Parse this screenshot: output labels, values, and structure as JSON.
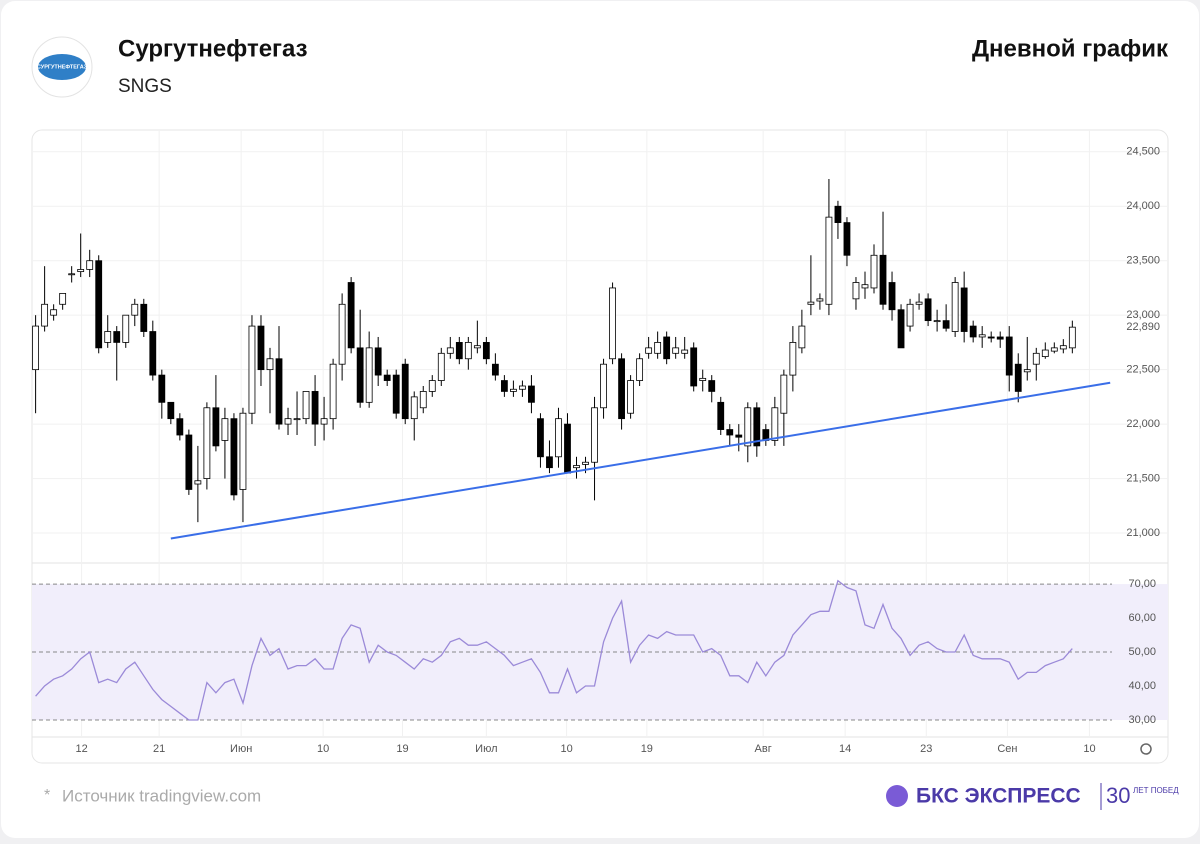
{
  "header": {
    "title": "Сургутнефтегаз",
    "ticker": "SNGS",
    "chart_kind": "Дневной график",
    "logo_text": "СУРГУТНЕФТЕГАЗ"
  },
  "footer": {
    "asterisk": "*",
    "source": "Источник tradingview.com",
    "brand": "БКС ЭКСПРЕСС",
    "years": "30",
    "years_text": "ЛЕТ ПОБЕД"
  },
  "chart_data": {
    "type": "candlestick",
    "ylim": [
      20725,
      24700
    ],
    "yticks": [
      {
        "value": 21000,
        "label": "21,000"
      },
      {
        "value": 21500,
        "label": "21,500"
      },
      {
        "value": 22000,
        "label": "22,000"
      },
      {
        "value": 22500,
        "label": "22,500"
      },
      {
        "value": 23000,
        "label": "23,000"
      },
      {
        "value": 23500,
        "label": "23,500"
      },
      {
        "value": 24000,
        "label": "24,000"
      },
      {
        "value": 24500,
        "label": "24,500"
      }
    ],
    "last_price": {
      "value": 22890,
      "label": "22,890"
    },
    "xlim": [
      -0.4,
      119.4
    ],
    "xticks": [
      {
        "value": 5.1,
        "label": "12"
      },
      {
        "value": 13.7,
        "label": "21"
      },
      {
        "value": 22.8,
        "label": "Июн"
      },
      {
        "value": 31.9,
        "label": "10"
      },
      {
        "value": 40.7,
        "label": "19"
      },
      {
        "value": 50,
        "label": "Июл"
      },
      {
        "value": 58.9,
        "label": "10"
      },
      {
        "value": 67.8,
        "label": "19"
      },
      {
        "value": 80.7,
        "label": "Авг"
      },
      {
        "value": 89.8,
        "label": "14"
      },
      {
        "value": 98.8,
        "label": "23"
      },
      {
        "value": 107.8,
        "label": "Сен"
      },
      {
        "value": 116.9,
        "label": "10"
      }
    ],
    "up_color": "#ffffff",
    "down_color": "#000000",
    "grid": true,
    "trendline": {
      "x": [
        15,
        119.2
      ],
      "y": [
        20950,
        22380
      ],
      "color": "#3a6ee8"
    },
    "candles": [
      {
        "open": 22500,
        "high": 23000,
        "low": 22100,
        "close": 22900
      },
      {
        "open": 22900,
        "high": 23450,
        "low": 22850,
        "close": 23100
      },
      {
        "open": 23000,
        "high": 23100,
        "low": 22950,
        "close": 23050
      },
      {
        "open": 23100,
        "high": 23200,
        "low": 23050,
        "close": 23200
      },
      {
        "open": 23380,
        "high": 23450,
        "low": 23300,
        "close": 23380
      },
      {
        "open": 23400,
        "high": 23750,
        "low": 23350,
        "close": 23420
      },
      {
        "open": 23420,
        "high": 23600,
        "low": 23350,
        "close": 23500
      },
      {
        "open": 23500,
        "high": 23550,
        "low": 22650,
        "close": 22700
      },
      {
        "open": 22750,
        "high": 23000,
        "low": 22700,
        "close": 22850
      },
      {
        "open": 22850,
        "high": 22900,
        "low": 22400,
        "close": 22750
      },
      {
        "open": 22750,
        "high": 23000,
        "low": 22700,
        "close": 23000
      },
      {
        "open": 23000,
        "high": 23150,
        "low": 22900,
        "close": 23100
      },
      {
        "open": 23100,
        "high": 23150,
        "low": 22800,
        "close": 22850
      },
      {
        "open": 22850,
        "high": 22950,
        "low": 22400,
        "close": 22450
      },
      {
        "open": 22450,
        "high": 22500,
        "low": 22050,
        "close": 22200
      },
      {
        "open": 22200,
        "high": 22200,
        "low": 22000,
        "close": 22050
      },
      {
        "open": 22050,
        "high": 22100,
        "low": 21850,
        "close": 21900
      },
      {
        "open": 21900,
        "high": 21950,
        "low": 21350,
        "close": 21400
      },
      {
        "open": 21450,
        "high": 21800,
        "low": 21100,
        "close": 21480
      },
      {
        "open": 21500,
        "high": 22200,
        "low": 21400,
        "close": 22150
      },
      {
        "open": 22150,
        "high": 22450,
        "low": 21750,
        "close": 21800
      },
      {
        "open": 21850,
        "high": 22150,
        "low": 21500,
        "close": 22050
      },
      {
        "open": 22050,
        "high": 22100,
        "low": 21300,
        "close": 21350
      },
      {
        "open": 21400,
        "high": 22150,
        "low": 21100,
        "close": 22100
      },
      {
        "open": 22100,
        "high": 23000,
        "low": 22000,
        "close": 22900
      },
      {
        "open": 22900,
        "high": 23000,
        "low": 22350,
        "close": 22500
      },
      {
        "open": 22500,
        "high": 22700,
        "low": 22100,
        "close": 22600
      },
      {
        "open": 22600,
        "high": 22900,
        "low": 21950,
        "close": 22000
      },
      {
        "open": 22000,
        "high": 22150,
        "low": 21900,
        "close": 22050
      },
      {
        "open": 22050,
        "high": 22300,
        "low": 21900,
        "close": 22050
      },
      {
        "open": 22050,
        "high": 22300,
        "low": 22000,
        "close": 22300
      },
      {
        "open": 22300,
        "high": 22450,
        "low": 21800,
        "close": 22000
      },
      {
        "open": 22000,
        "high": 22250,
        "low": 21850,
        "close": 22050
      },
      {
        "open": 22050,
        "high": 22600,
        "low": 21950,
        "close": 22550
      },
      {
        "open": 22550,
        "high": 23200,
        "low": 22400,
        "close": 23100
      },
      {
        "open": 23300,
        "high": 23350,
        "low": 22650,
        "close": 22700
      },
      {
        "open": 22700,
        "high": 23050,
        "low": 22150,
        "close": 22200
      },
      {
        "open": 22200,
        "high": 22850,
        "low": 22150,
        "close": 22700
      },
      {
        "open": 22700,
        "high": 22800,
        "low": 22350,
        "close": 22450
      },
      {
        "open": 22450,
        "high": 22500,
        "low": 22350,
        "close": 22400
      },
      {
        "open": 22450,
        "high": 22500,
        "low": 22050,
        "close": 22100
      },
      {
        "open": 22550,
        "high": 22600,
        "low": 22000,
        "close": 22050
      },
      {
        "open": 22050,
        "high": 22300,
        "low": 21850,
        "close": 22250
      },
      {
        "open": 22150,
        "high": 22350,
        "low": 22100,
        "close": 22300
      },
      {
        "open": 22300,
        "high": 22450,
        "low": 22250,
        "close": 22400
      },
      {
        "open": 22400,
        "high": 22700,
        "low": 22350,
        "close": 22650
      },
      {
        "open": 22650,
        "high": 22800,
        "low": 22600,
        "close": 22700
      },
      {
        "open": 22750,
        "high": 22800,
        "low": 22550,
        "close": 22600
      },
      {
        "open": 22600,
        "high": 22800,
        "low": 22500,
        "close": 22750
      },
      {
        "open": 22700,
        "high": 22950,
        "low": 22650,
        "close": 22720
      },
      {
        "open": 22750,
        "high": 22800,
        "low": 22550,
        "close": 22600
      },
      {
        "open": 22550,
        "high": 22650,
        "low": 22400,
        "close": 22450
      },
      {
        "open": 22400,
        "high": 22450,
        "low": 22250,
        "close": 22300
      },
      {
        "open": 22300,
        "high": 22400,
        "low": 22250,
        "close": 22320
      },
      {
        "open": 22320,
        "high": 22400,
        "low": 22250,
        "close": 22350
      },
      {
        "open": 22350,
        "high": 22450,
        "low": 22100,
        "close": 22200
      },
      {
        "open": 22050,
        "high": 22100,
        "low": 21600,
        "close": 21700
      },
      {
        "open": 21700,
        "high": 21850,
        "low": 21550,
        "close": 21600
      },
      {
        "open": 21700,
        "high": 22150,
        "low": 21600,
        "close": 22050
      },
      {
        "open": 22000,
        "high": 22100,
        "low": 21550,
        "close": 21550
      },
      {
        "open": 21600,
        "high": 21700,
        "low": 21500,
        "close": 21620
      },
      {
        "open": 21630,
        "high": 21700,
        "low": 21550,
        "close": 21650
      },
      {
        "open": 21650,
        "high": 22250,
        "low": 21300,
        "close": 22150
      },
      {
        "open": 22150,
        "high": 22600,
        "low": 22050,
        "close": 22550
      },
      {
        "open": 22600,
        "high": 23300,
        "low": 22550,
        "close": 23250
      },
      {
        "open": 22600,
        "high": 22650,
        "low": 21950,
        "close": 22050
      },
      {
        "open": 22100,
        "high": 22450,
        "low": 22050,
        "close": 22400
      },
      {
        "open": 22400,
        "high": 22650,
        "low": 22350,
        "close": 22600
      },
      {
        "open": 22650,
        "high": 22800,
        "low": 22600,
        "close": 22700
      },
      {
        "open": 22650,
        "high": 22850,
        "low": 22600,
        "close": 22750
      },
      {
        "open": 22800,
        "high": 22850,
        "low": 22550,
        "close": 22600
      },
      {
        "open": 22650,
        "high": 22800,
        "low": 22600,
        "close": 22700
      },
      {
        "open": 22650,
        "high": 22800,
        "low": 22600,
        "close": 22680
      },
      {
        "open": 22700,
        "high": 22750,
        "low": 22300,
        "close": 22350
      },
      {
        "open": 22400,
        "high": 22500,
        "low": 22300,
        "close": 22420
      },
      {
        "open": 22400,
        "high": 22450,
        "low": 22200,
        "close": 22300
      },
      {
        "open": 22200,
        "high": 22250,
        "low": 21900,
        "close": 21950
      },
      {
        "open": 21950,
        "high": 22000,
        "low": 21800,
        "close": 21900
      },
      {
        "open": 21900,
        "high": 22000,
        "low": 21750,
        "close": 21880
      },
      {
        "open": 21800,
        "high": 22200,
        "low": 21650,
        "close": 22150
      },
      {
        "open": 22150,
        "high": 22200,
        "low": 21700,
        "close": 21800
      },
      {
        "open": 21950,
        "high": 22000,
        "low": 21800,
        "close": 21850
      },
      {
        "open": 21850,
        "high": 22250,
        "low": 21800,
        "close": 22150
      },
      {
        "open": 22100,
        "high": 22500,
        "low": 21800,
        "close": 22450
      },
      {
        "open": 22450,
        "high": 22900,
        "low": 22300,
        "close": 22750
      },
      {
        "open": 22700,
        "high": 23050,
        "low": 22650,
        "close": 22900
      },
      {
        "open": 23100,
        "high": 23550,
        "low": 23000,
        "close": 23120
      },
      {
        "open": 23130,
        "high": 23200,
        "low": 23050,
        "close": 23150
      },
      {
        "open": 23100,
        "high": 24250,
        "low": 23000,
        "close": 23900
      },
      {
        "open": 24000,
        "high": 24050,
        "low": 23700,
        "close": 23850
      },
      {
        "open": 23850,
        "high": 23900,
        "low": 23450,
        "close": 23550
      },
      {
        "open": 23150,
        "high": 23350,
        "low": 23050,
        "close": 23300
      },
      {
        "open": 23250,
        "high": 23400,
        "low": 23150,
        "close": 23280
      },
      {
        "open": 23250,
        "high": 23650,
        "low": 23200,
        "close": 23550
      },
      {
        "open": 23550,
        "high": 23950,
        "low": 23050,
        "close": 23100
      },
      {
        "open": 23300,
        "high": 23400,
        "low": 22950,
        "close": 23050
      },
      {
        "open": 23050,
        "high": 23100,
        "low": 22700,
        "close": 22700
      },
      {
        "open": 22900,
        "high": 23150,
        "low": 22850,
        "close": 23100
      },
      {
        "open": 23100,
        "high": 23200,
        "low": 23050,
        "close": 23120
      },
      {
        "open": 23150,
        "high": 23200,
        "low": 22900,
        "close": 22950
      },
      {
        "open": 22950,
        "high": 23050,
        "low": 22850,
        "close": 22950
      },
      {
        "open": 22950,
        "high": 23100,
        "low": 22850,
        "close": 22880
      },
      {
        "open": 22850,
        "high": 23350,
        "low": 22800,
        "close": 23300
      },
      {
        "open": 23250,
        "high": 23400,
        "low": 22750,
        "close": 22850
      },
      {
        "open": 22900,
        "high": 22950,
        "low": 22750,
        "close": 22800
      },
      {
        "open": 22800,
        "high": 22900,
        "low": 22700,
        "close": 22820
      },
      {
        "open": 22800,
        "high": 22850,
        "low": 22750,
        "close": 22790
      },
      {
        "open": 22800,
        "high": 22850,
        "low": 22700,
        "close": 22780
      },
      {
        "open": 22800,
        "high": 22900,
        "low": 22300,
        "close": 22450
      },
      {
        "open": 22550,
        "high": 22650,
        "low": 22200,
        "close": 22300
      },
      {
        "open": 22480,
        "high": 22800,
        "low": 22400,
        "close": 22500
      },
      {
        "open": 22550,
        "high": 22700,
        "low": 22400,
        "close": 22650
      },
      {
        "open": 22620,
        "high": 22750,
        "low": 22600,
        "close": 22680
      },
      {
        "open": 22670,
        "high": 22750,
        "low": 22650,
        "close": 22700
      },
      {
        "open": 22690,
        "high": 22780,
        "low": 22650,
        "close": 22720
      },
      {
        "open": 22700,
        "high": 22950,
        "low": 22650,
        "close": 22890
      }
    ],
    "rsi": {
      "color": "#9b8ad8",
      "band_color": "#f1eefb",
      "ylim": [
        25,
        76.2
      ],
      "yticks": [
        {
          "value": 30,
          "label": "30,00"
        },
        {
          "value": 40,
          "label": "40,00"
        },
        {
          "value": 50,
          "label": "50,00"
        },
        {
          "value": 60,
          "label": "60,00"
        },
        {
          "value": 70,
          "label": "70,00"
        }
      ],
      "band": [
        30,
        70
      ],
      "levels": [
        30,
        50,
        70
      ],
      "values": [
        37,
        40,
        42,
        43,
        45,
        48,
        50,
        41,
        42,
        41,
        45,
        47,
        43,
        39,
        36,
        34,
        32,
        30,
        30,
        41,
        38,
        41,
        42,
        35,
        46,
        54,
        49,
        51,
        45,
        46,
        46,
        48,
        45,
        45,
        54,
        58,
        57,
        47,
        52,
        50,
        49,
        47,
        45,
        48,
        47,
        49,
        53,
        54,
        52,
        52,
        53,
        51,
        49,
        46,
        47,
        48,
        44,
        38,
        38,
        45,
        38,
        40,
        40,
        53,
        60,
        65,
        47,
        52,
        55,
        54,
        56,
        55,
        55,
        55,
        50,
        51,
        49,
        43,
        43,
        41,
        47,
        43,
        47,
        49,
        55,
        58,
        61,
        62,
        62,
        71,
        69,
        68,
        58,
        57,
        64,
        57,
        54,
        49,
        52,
        53,
        51,
        50,
        50,
        55,
        49,
        48,
        48,
        48,
        47,
        42,
        44,
        44,
        46,
        47,
        48,
        51
      ]
    }
  }
}
